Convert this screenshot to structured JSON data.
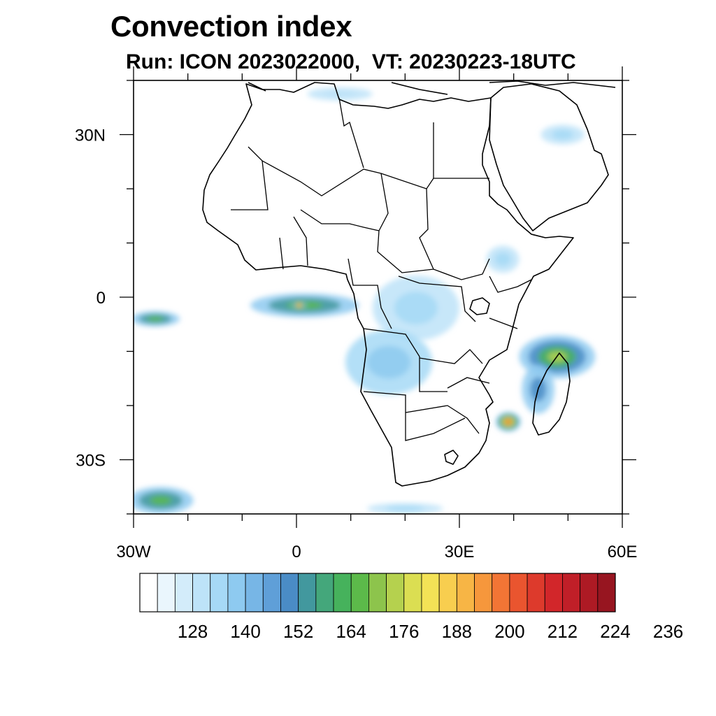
{
  "title": "Convection index",
  "subtitle": "Run: ICON 2023022000,  VT: 20230223-18UTC",
  "map": {
    "lon_range": [
      -30,
      60
    ],
    "lat_range": [
      -40,
      40
    ],
    "lon_ticks": [
      {
        "value": -30,
        "label": "30W"
      },
      {
        "value": 0,
        "label": "0"
      },
      {
        "value": 30,
        "label": "30E"
      },
      {
        "value": 60,
        "label": "60E"
      }
    ],
    "lat_ticks": [
      {
        "value": 30,
        "label": "30N"
      },
      {
        "value": 0,
        "label": "0"
      },
      {
        "value": -30,
        "label": "30S"
      }
    ],
    "minor_lon_step": 10,
    "minor_lat_step": 10
  },
  "colorbar": {
    "levels_labeled": [
      "128",
      "140",
      "152",
      "164",
      "176",
      "188",
      "200",
      "212",
      "224",
      "236"
    ],
    "colors": [
      "#ffffff",
      "#eaf6fd",
      "#d3ecfa",
      "#bde3f8",
      "#a6d9f6",
      "#8ecaf0",
      "#77b6e6",
      "#5f9fd8",
      "#4a8cc6",
      "#42989e",
      "#44a77b",
      "#46b25c",
      "#5cba4a",
      "#8dc44c",
      "#b5d14e",
      "#dbde52",
      "#f3e256",
      "#f8ce4f",
      "#f7b545",
      "#f6973c",
      "#f27535",
      "#ea552f",
      "#dd3a2c",
      "#d2262a",
      "#c01f28",
      "#ad1a24",
      "#971520"
    ]
  },
  "features": {
    "convection_areas": [
      {
        "name": "equatorial-atlantic-west",
        "lon": -26,
        "lat": -4,
        "rx": 4.5,
        "ry": 1.4,
        "level": 12
      },
      {
        "name": "gulf-of-guinea-band",
        "lon": 1.5,
        "lat": -1.5,
        "rx": 10,
        "ry": 2.2,
        "level": 12
      },
      {
        "name": "gulf-of-guinea-core",
        "lon": 0.5,
        "lat": -1.5,
        "rx": 1.4,
        "ry": 1.0,
        "level": 21
      },
      {
        "name": "central-africa-congo",
        "lon": 22,
        "lat": -2,
        "rx": 8,
        "ry": 6,
        "level": 4
      },
      {
        "name": "angola-zambia",
        "lon": 17,
        "lat": -12,
        "rx": 8,
        "ry": 6,
        "level": 5
      },
      {
        "name": "east-africa-highlands",
        "lon": 38,
        "lat": 7,
        "rx": 3,
        "ry": 2.5,
        "level": 4
      },
      {
        "name": "madagascar-northeast",
        "lon": 48,
        "lat": -11,
        "rx": 7,
        "ry": 4,
        "level": 14
      },
      {
        "name": "madagascar-east-coast",
        "lon": 44.5,
        "lat": -17,
        "rx": 3,
        "ry": 4.5,
        "level": 8
      },
      {
        "name": "mozambique-channel-cyclone",
        "lon": 39,
        "lat": -23,
        "rx": 2.3,
        "ry": 1.8,
        "level": 22
      },
      {
        "name": "southwest-atlantic-band",
        "lon": -25,
        "lat": -37.5,
        "rx": 6,
        "ry": 2.5,
        "level": 12
      },
      {
        "name": "south-atlantic-band",
        "lon": 20,
        "lat": -39,
        "rx": 7,
        "ry": 1.0,
        "level": 4
      },
      {
        "name": "mediterranean-streak",
        "lon": 8,
        "lat": 37.5,
        "rx": 6,
        "ry": 1.2,
        "level": 3
      },
      {
        "name": "arabian-gulf-cells",
        "lon": 49,
        "lat": 30,
        "rx": 4,
        "ry": 1.8,
        "level": 4
      }
    ]
  }
}
